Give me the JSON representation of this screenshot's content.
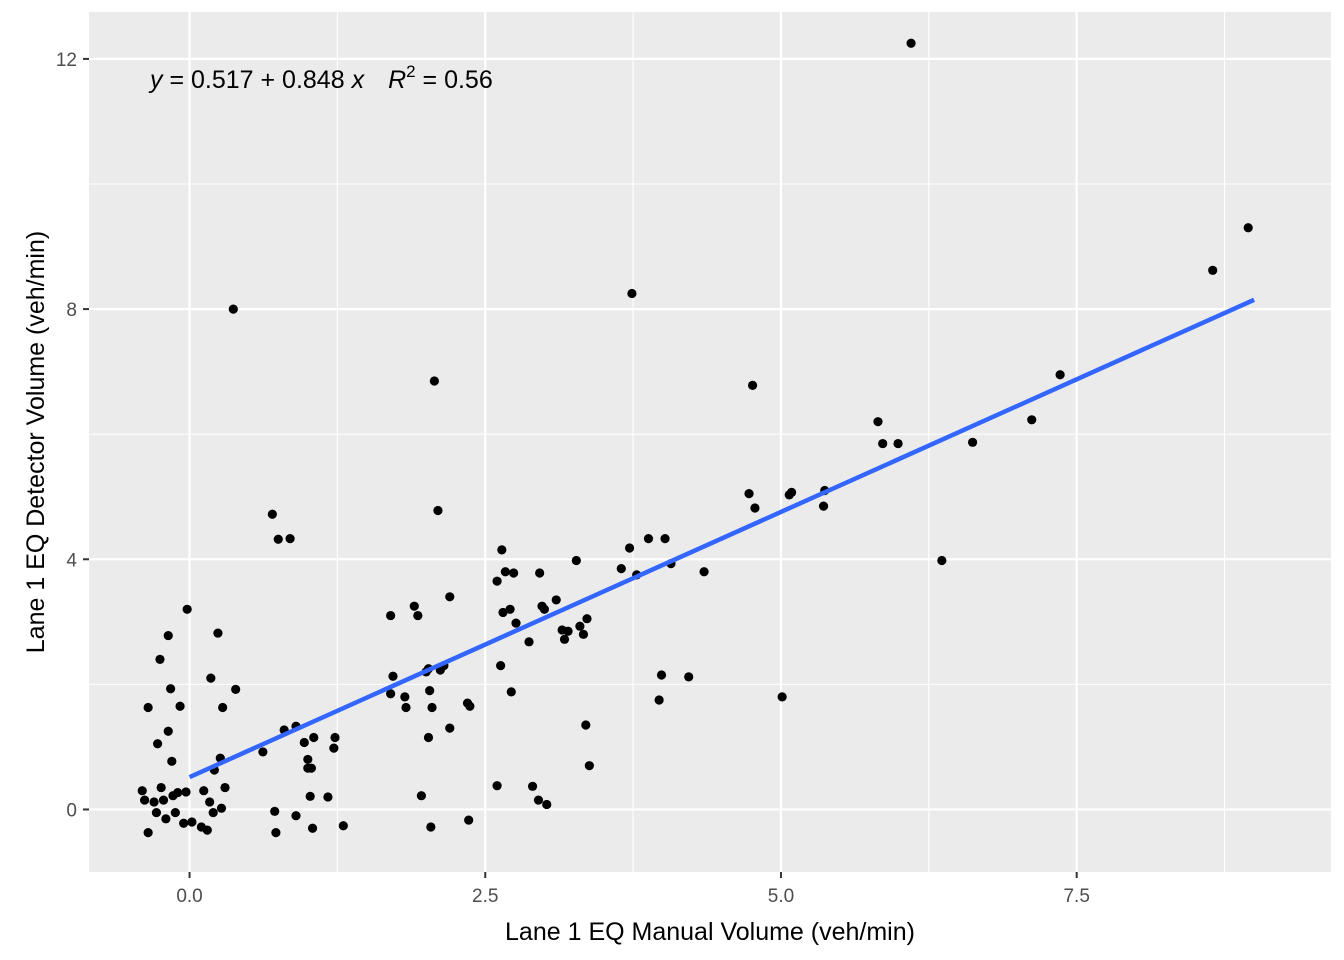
{
  "colors": {
    "panel_background": "#ebebeb",
    "grid_major": "#ffffff",
    "points": "#000000",
    "fit_line": "#3366ff",
    "tick_text": "#4d4d4d"
  },
  "chart_data": {
    "type": "scatter",
    "xlabel": "Lane 1 EQ Manual Volume (veh/min)",
    "ylabel": "Lane 1 EQ Detector Volume (veh/min)",
    "xlim": [
      -0.85,
      9.65
    ],
    "ylim": [
      -1.0,
      12.75
    ],
    "x_ticks": [
      0.0,
      2.5,
      5.0,
      7.5
    ],
    "x_tick_labels": [
      "0.0",
      "2.5",
      "5.0",
      "7.5"
    ],
    "y_ticks": [
      0,
      4,
      8,
      12
    ],
    "y_tick_labels": [
      "0",
      "4",
      "8",
      "12"
    ],
    "grid": true,
    "legend": "none",
    "annotation": {
      "y_var": "y",
      "eq_rest": " = 0.517 + 0.848 ",
      "x_var": "x",
      "r_var": "R",
      "r_sup": "2",
      "r_rest": " = 0.56"
    },
    "fit_line": {
      "intercept": 0.517,
      "slope": 0.848,
      "x_range": [
        0.0,
        9.0
      ]
    },
    "points": [
      [
        -0.4,
        0.3
      ],
      [
        -0.38,
        0.15
      ],
      [
        -0.35,
        -0.37
      ],
      [
        -0.35,
        1.63
      ],
      [
        -0.3,
        0.12
      ],
      [
        -0.28,
        -0.05
      ],
      [
        -0.27,
        1.05
      ],
      [
        -0.25,
        2.4
      ],
      [
        -0.24,
        0.35
      ],
      [
        -0.22,
        0.15
      ],
      [
        -0.2,
        -0.15
      ],
      [
        -0.18,
        2.78
      ],
      [
        -0.18,
        1.25
      ],
      [
        -0.16,
        1.93
      ],
      [
        -0.15,
        0.77
      ],
      [
        -0.14,
        0.22
      ],
      [
        -0.12,
        -0.05
      ],
      [
        -0.1,
        0.27
      ],
      [
        -0.08,
        1.65
      ],
      [
        -0.05,
        -0.22
      ],
      [
        -0.03,
        0.28
      ],
      [
        -0.02,
        3.2
      ],
      [
        0.02,
        -0.2
      ],
      [
        0.1,
        -0.28
      ],
      [
        0.12,
        0.3
      ],
      [
        0.15,
        -0.33
      ],
      [
        0.17,
        0.12
      ],
      [
        0.18,
        2.1
      ],
      [
        0.2,
        -0.05
      ],
      [
        0.21,
        0.63
      ],
      [
        0.24,
        2.82
      ],
      [
        0.26,
        0.82
      ],
      [
        0.28,
        1.63
      ],
      [
        0.3,
        0.35
      ],
      [
        0.27,
        0.02
      ],
      [
        0.37,
        8.0
      ],
      [
        0.39,
        1.92
      ],
      [
        0.62,
        0.92
      ],
      [
        0.7,
        4.72
      ],
      [
        0.72,
        -0.03
      ],
      [
        0.73,
        -0.37
      ],
      [
        0.75,
        4.32
      ],
      [
        0.8,
        1.27
      ],
      [
        0.85,
        4.33
      ],
      [
        0.9,
        1.33
      ],
      [
        0.9,
        -0.1
      ],
      [
        0.97,
        1.07
      ],
      [
        1.0,
        0.8
      ],
      [
        1.0,
        0.66
      ],
      [
        1.02,
        0.21
      ],
      [
        1.03,
        0.66
      ],
      [
        1.04,
        -0.3
      ],
      [
        1.05,
        1.15
      ],
      [
        1.17,
        0.2
      ],
      [
        1.22,
        0.98
      ],
      [
        1.23,
        1.15
      ],
      [
        1.3,
        -0.26
      ],
      [
        1.7,
        3.1
      ],
      [
        1.7,
        1.85
      ],
      [
        1.72,
        2.13
      ],
      [
        1.82,
        1.8
      ],
      [
        1.83,
        1.63
      ],
      [
        1.9,
        3.25
      ],
      [
        1.93,
        3.1
      ],
      [
        1.96,
        0.22
      ],
      [
        2.0,
        2.2
      ],
      [
        2.02,
        2.25
      ],
      [
        2.02,
        1.15
      ],
      [
        2.03,
        1.9
      ],
      [
        2.04,
        -0.28
      ],
      [
        2.05,
        1.63
      ],
      [
        2.07,
        6.85
      ],
      [
        2.1,
        4.78
      ],
      [
        2.12,
        2.23
      ],
      [
        2.15,
        2.3
      ],
      [
        2.2,
        3.4
      ],
      [
        2.2,
        1.3
      ],
      [
        2.35,
        1.7
      ],
      [
        2.36,
        -0.17
      ],
      [
        2.37,
        1.65
      ],
      [
        2.6,
        3.65
      ],
      [
        2.6,
        0.38
      ],
      [
        2.63,
        2.3
      ],
      [
        2.64,
        4.15
      ],
      [
        2.65,
        3.15
      ],
      [
        2.67,
        3.8
      ],
      [
        2.71,
        3.2
      ],
      [
        2.72,
        1.88
      ],
      [
        2.74,
        3.78
      ],
      [
        2.76,
        2.98
      ],
      [
        2.87,
        2.68
      ],
      [
        2.9,
        0.37
      ],
      [
        2.95,
        0.15
      ],
      [
        2.96,
        3.78
      ],
      [
        2.98,
        3.25
      ],
      [
        3.0,
        3.2
      ],
      [
        3.02,
        0.08
      ],
      [
        3.1,
        3.35
      ],
      [
        3.15,
        2.87
      ],
      [
        3.17,
        2.72
      ],
      [
        3.2,
        2.85
      ],
      [
        3.27,
        3.98
      ],
      [
        3.3,
        2.93
      ],
      [
        3.33,
        2.8
      ],
      [
        3.35,
        1.35
      ],
      [
        3.36,
        3.05
      ],
      [
        3.38,
        0.7
      ],
      [
        3.65,
        3.85
      ],
      [
        3.72,
        4.18
      ],
      [
        3.74,
        8.25
      ],
      [
        3.78,
        3.75
      ],
      [
        3.88,
        4.33
      ],
      [
        3.97,
        1.75
      ],
      [
        3.99,
        2.15
      ],
      [
        4.02,
        4.33
      ],
      [
        4.07,
        3.93
      ],
      [
        4.22,
        2.12
      ],
      [
        4.35,
        3.8
      ],
      [
        4.73,
        5.05
      ],
      [
        4.76,
        6.78
      ],
      [
        4.78,
        4.82
      ],
      [
        5.01,
        1.8
      ],
      [
        5.07,
        5.03
      ],
      [
        5.09,
        5.07
      ],
      [
        5.36,
        4.85
      ],
      [
        5.37,
        5.1
      ],
      [
        5.82,
        6.2
      ],
      [
        5.86,
        5.85
      ],
      [
        5.99,
        5.85
      ],
      [
        6.1,
        12.25
      ],
      [
        6.36,
        3.98
      ],
      [
        6.62,
        5.87
      ],
      [
        7.12,
        6.23
      ],
      [
        7.36,
        6.95
      ],
      [
        8.65,
        8.62
      ],
      [
        8.95,
        9.3
      ]
    ]
  }
}
